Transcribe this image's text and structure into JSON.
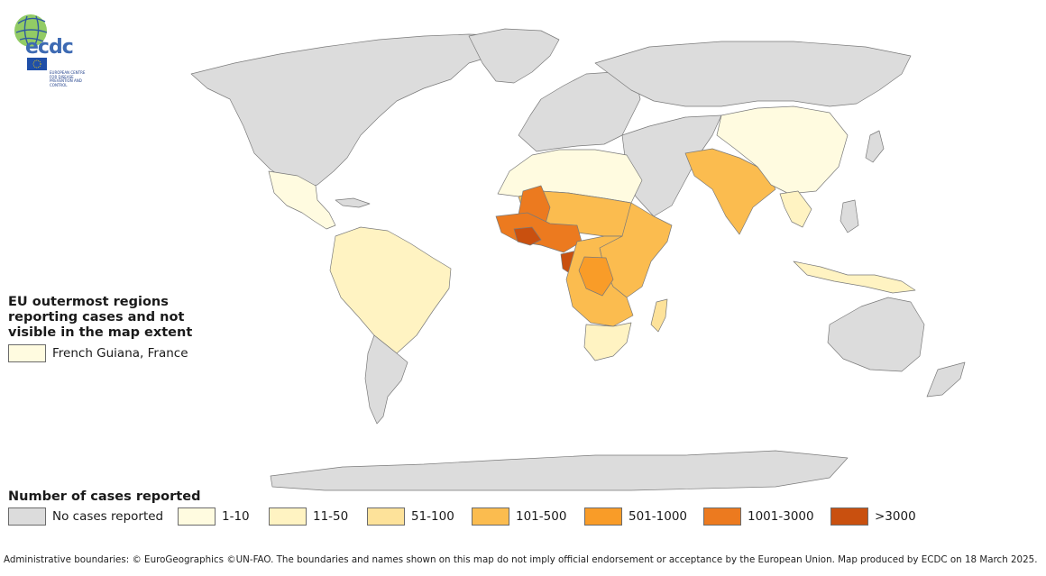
{
  "logo": {
    "name": "ecdc",
    "subtitle": "EUROPEAN CENTRE FOR DISEASE PREVENTION AND CONTROL"
  },
  "outermost": {
    "title": "EU outermost regions reporting cases and not visible in the map extent",
    "items": [
      {
        "label": "French Guiana, France",
        "color": "#fffbe0"
      }
    ]
  },
  "legend": {
    "title": "Number of cases reported",
    "items": [
      {
        "label": "No cases reported",
        "color": "#dcdcdc"
      },
      {
        "label": "1-10",
        "color": "#fffbe0"
      },
      {
        "label": "11-50",
        "color": "#fff3c2"
      },
      {
        "label": "51-100",
        "color": "#fde29a"
      },
      {
        "label": "101-500",
        "color": "#fbbc4f"
      },
      {
        "label": "501-1000",
        "color": "#f99c28"
      },
      {
        "label": "1001-3000",
        "color": "#ec7a1f"
      },
      {
        "label": ">3000",
        "color": "#c9500f"
      }
    ]
  },
  "footer": "Administrative boundaries: © EuroGeographics ©UN-FAO. The boundaries and names shown on this map do not imply official endorsement or acceptance by the European Union. Map produced by ECDC on 18 March 2025."
}
